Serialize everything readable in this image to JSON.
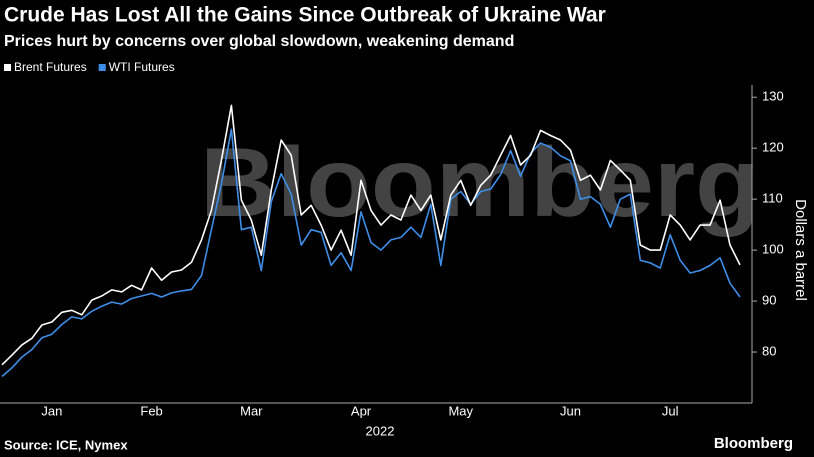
{
  "chart_data": {
    "type": "line",
    "title": "Crude Has Lost All the Gains Since Outbreak of Ukraine War",
    "subtitle": "Prices hurt by concerns over global slowdown, weakening demand",
    "ylabel": "Dollars a barrel",
    "xlabel": "2022",
    "source": "Source: ICE, Nymex",
    "watermark": "Bloomberg",
    "brand": "Bloomberg",
    "categories": [
      null,
      null,
      null,
      null,
      null,
      "Jan",
      null,
      null,
      null,
      null,
      null,
      null,
      null,
      null,
      null,
      "Feb",
      null,
      null,
      null,
      null,
      null,
      null,
      null,
      null,
      null,
      "Mar",
      null,
      null,
      null,
      null,
      null,
      null,
      null,
      null,
      null,
      null,
      "Apr",
      null,
      null,
      null,
      null,
      null,
      null,
      null,
      null,
      null,
      "May",
      null,
      null,
      null,
      null,
      null,
      null,
      null,
      null,
      null,
      null,
      "Jun",
      null,
      null,
      null,
      null,
      null,
      null,
      null,
      null,
      null,
      "Jul",
      null,
      null,
      null,
      null,
      null,
      null,
      null
    ],
    "series": [
      {
        "name": "Brent Futures",
        "color": "#ffffff",
        "values": [
          77.5,
          79.4,
          81.4,
          82.7,
          85.3,
          85.9,
          87.8,
          88.2,
          87.3,
          90.2,
          91,
          92.2,
          91.8,
          93.1,
          92.2,
          96.5,
          94.1,
          95.7,
          96.1,
          97.6,
          102,
          107.8,
          117.6,
          128.4,
          109.8,
          105.9,
          99,
          111.8,
          121.6,
          118.6,
          106.9,
          108.8,
          104.9,
          100,
          103.9,
          99,
          113.7,
          107.8,
          104.9,
          106.9,
          105.9,
          110.8,
          107.8,
          110.8,
          102,
          110.8,
          113.7,
          108.8,
          112.7,
          114.7,
          118.6,
          122.5,
          116.7,
          118.6,
          123.5,
          122.5,
          121.6,
          119.6,
          113.7,
          114.7,
          111.8,
          117.6,
          115.7,
          113.7,
          101,
          100,
          100,
          106.9,
          104.9,
          102,
          104.9,
          104.9,
          109.8,
          101,
          97.1
        ]
      },
      {
        "name": "WTI Futures",
        "color": "#3d8ee8",
        "values": [
          75.2,
          76.9,
          79,
          80.5,
          82.8,
          83.5,
          85.4,
          86.9,
          86.5,
          88,
          89,
          89.8,
          89.4,
          90.5,
          91,
          91.5,
          90.8,
          91.6,
          92,
          92.3,
          95,
          104,
          113,
          123.7,
          104,
          104.5,
          96,
          109.5,
          115,
          111,
          101,
          104,
          103.5,
          97,
          99.5,
          96,
          107.5,
          101.5,
          100,
          102,
          102.5,
          104.5,
          102.5,
          109,
          97,
          110,
          111.5,
          109,
          111.5,
          112,
          114.8,
          119.5,
          114.5,
          119,
          121,
          120.2,
          118.5,
          117.5,
          110,
          110.5,
          109,
          104.5,
          110,
          111,
          98,
          97.5,
          96.5,
          103,
          98,
          95.5,
          96,
          97,
          98.5,
          93.5,
          90.8
        ]
      }
    ],
    "ylim": [
      70,
      132.4
    ],
    "yticks": [
      80,
      90,
      100,
      110,
      120,
      130
    ],
    "grid": false,
    "legend": "top-left"
  }
}
